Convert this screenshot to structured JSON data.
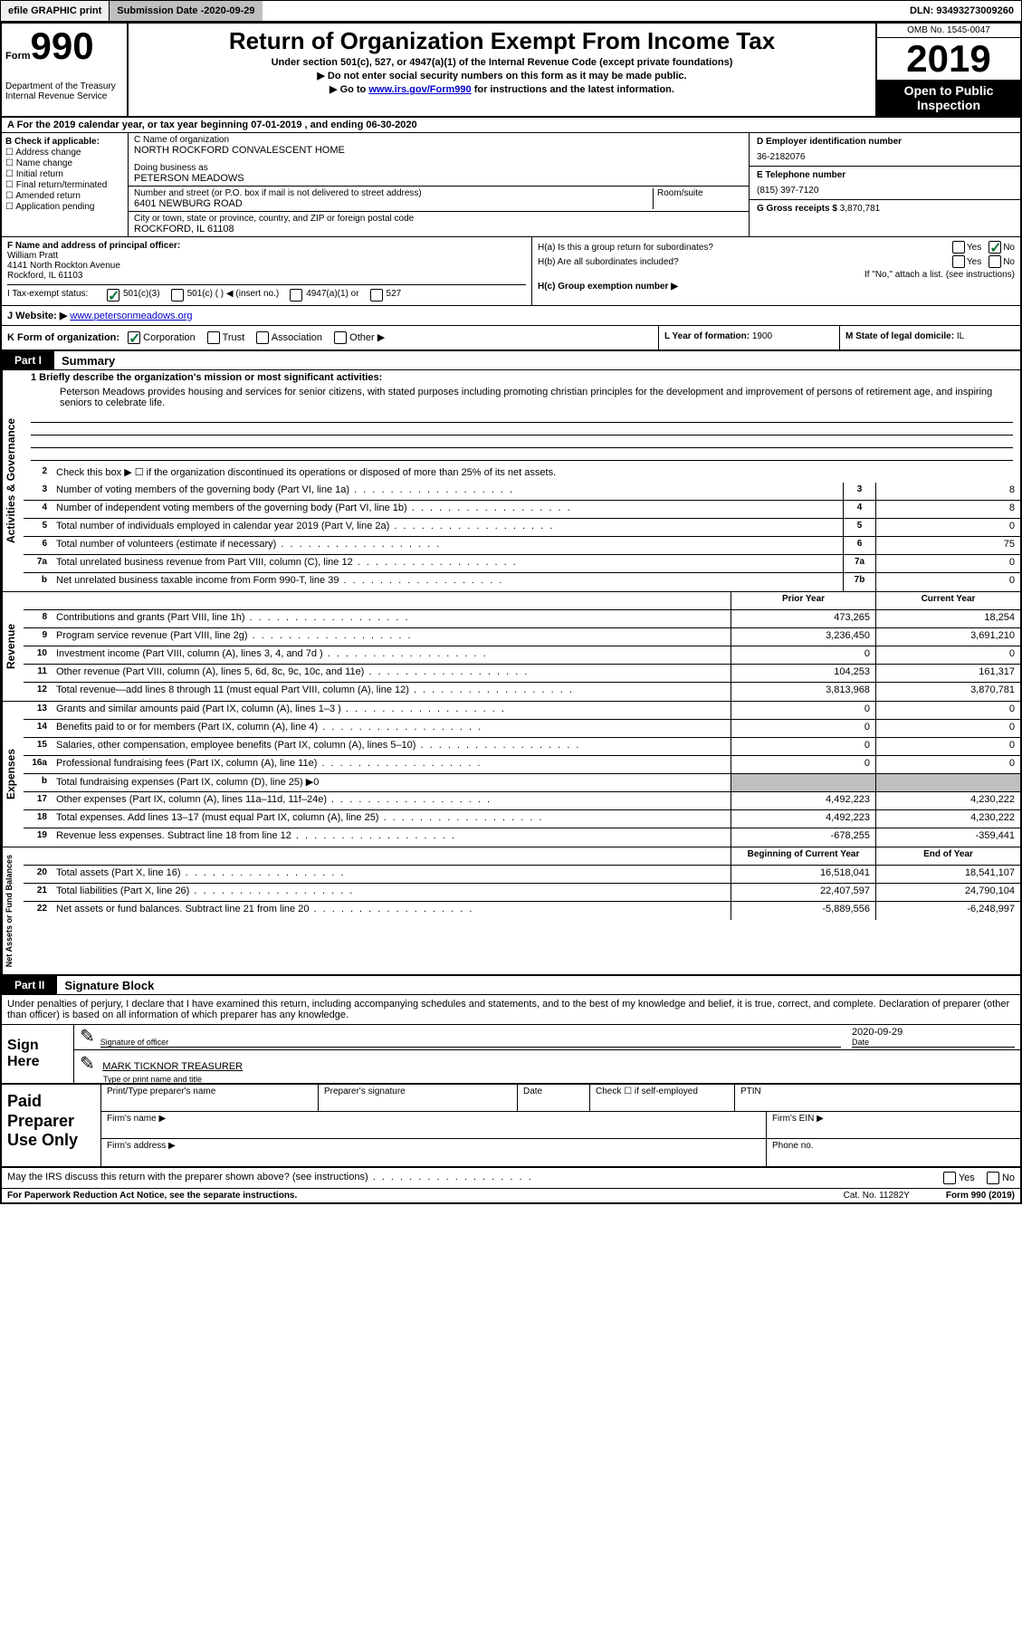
{
  "topbar": {
    "efile": "efile GRAPHIC print",
    "subdate_label": "Submission Date - ",
    "subdate": "2020-09-29",
    "dln": "DLN: 93493273009260"
  },
  "header": {
    "form_prefix": "Form",
    "form_num": "990",
    "dept": "Department of the Treasury\nInternal Revenue Service",
    "title": "Return of Organization Exempt From Income Tax",
    "sub1": "Under section 501(c), 527, or 4947(a)(1) of the Internal Revenue Code (except private foundations)",
    "sub2": "▶ Do not enter social security numbers on this form as it may be made public.",
    "sub3_pre": "▶ Go to ",
    "sub3_link": "www.irs.gov/Form990",
    "sub3_post": " for instructions and the latest information.",
    "omb": "OMB No. 1545-0047",
    "year": "2019",
    "open": "Open to Public Inspection"
  },
  "rowA": "A For the 2019 calendar year, or tax year beginning 07-01-2019     , and ending 06-30-2020",
  "secB": {
    "b_label": "B Check if applicable:",
    "checks": [
      "Address change",
      "Name change",
      "Initial return",
      "Final return/terminated",
      "Amended return",
      "Application pending"
    ],
    "c_label": "C Name of organization",
    "c_name": "NORTH ROCKFORD CONVALESCENT HOME",
    "dba_label": "Doing business as",
    "dba": "PETERSON MEADOWS",
    "addr_label": "Number and street (or P.O. box if mail is not delivered to street address)",
    "addr_room": "Room/suite",
    "addr": "6401 NEWBURG ROAD",
    "city_label": "City or town, state or province, country, and ZIP or foreign postal code",
    "city": "ROCKFORD, IL  61108",
    "d_label": "D Employer identification number",
    "d_val": "36-2182076",
    "e_label": "E Telephone number",
    "e_val": "(815) 397-7120",
    "g_label": "G Gross receipts $ ",
    "g_val": "3,870,781"
  },
  "secF": {
    "f_label": "F  Name and address of principal officer:",
    "f_name": "William Pratt",
    "f_addr1": "4141 North Rockton Avenue",
    "f_addr2": "Rockford, IL  61103",
    "h_a": "H(a)  Is this a group return for subordinates?",
    "h_b": "H(b)  Are all subordinates included?",
    "h_note": "If \"No,\" attach a list. (see instructions)",
    "h_c": "H(c)  Group exemption number ▶",
    "yes": "Yes",
    "no": "No"
  },
  "rowI": {
    "label": "I   Tax-exempt status:",
    "opts": [
      "501(c)(3)",
      "501(c) (  ) ◀ (insert no.)",
      "4947(a)(1) or",
      "527"
    ]
  },
  "rowJ": {
    "label": "J   Website: ▶ ",
    "url": "www.petersonmeadows.org"
  },
  "rowK": {
    "k": "K Form of organization:",
    "opts": [
      "Corporation",
      "Trust",
      "Association",
      "Other ▶"
    ],
    "l": "L Year of formation: ",
    "l_val": "1900",
    "m": "M State of legal domicile: ",
    "m_val": "IL"
  },
  "part1": {
    "tab": "Part I",
    "title": "Summary",
    "vlabel_ag": "Activities & Governance",
    "vlabel_rev": "Revenue",
    "vlabel_exp": "Expenses",
    "vlabel_na": "Net Assets or Fund Balances",
    "line1_label": "1  Briefly describe the organization's mission or most significant activities:",
    "line1_text": "Peterson Meadows provides housing and services for senior citizens, with stated purposes including promoting christian principles for the development and improvement of persons of retirement age, and inspiring seniors to celebrate life.",
    "line2": "Check this box ▶ ☐  if the organization discontinued its operations or disposed of more than 25% of its net assets.",
    "rows_ag": [
      {
        "n": "3",
        "d": "Number of voting members of the governing body (Part VI, line 1a)",
        "box": "3",
        "v": "8"
      },
      {
        "n": "4",
        "d": "Number of independent voting members of the governing body (Part VI, line 1b)",
        "box": "4",
        "v": "8"
      },
      {
        "n": "5",
        "d": "Total number of individuals employed in calendar year 2019 (Part V, line 2a)",
        "box": "5",
        "v": "0"
      },
      {
        "n": "6",
        "d": "Total number of volunteers (estimate if necessary)",
        "box": "6",
        "v": "75"
      },
      {
        "n": "7a",
        "d": "Total unrelated business revenue from Part VIII, column (C), line 12",
        "box": "7a",
        "v": "0"
      },
      {
        "n": "b",
        "d": "Net unrelated business taxable income from Form 990-T, line 39",
        "box": "7b",
        "v": "0"
      }
    ],
    "col_prior": "Prior Year",
    "col_curr": "Current Year",
    "rows_rev": [
      {
        "n": "8",
        "d": "Contributions and grants (Part VIII, line 1h)",
        "p": "473,265",
        "c": "18,254"
      },
      {
        "n": "9",
        "d": "Program service revenue (Part VIII, line 2g)",
        "p": "3,236,450",
        "c": "3,691,210"
      },
      {
        "n": "10",
        "d": "Investment income (Part VIII, column (A), lines 3, 4, and 7d )",
        "p": "0",
        "c": "0"
      },
      {
        "n": "11",
        "d": "Other revenue (Part VIII, column (A), lines 5, 6d, 8c, 9c, 10c, and 11e)",
        "p": "104,253",
        "c": "161,317"
      },
      {
        "n": "12",
        "d": "Total revenue—add lines 8 through 11 (must equal Part VIII, column (A), line 12)",
        "p": "3,813,968",
        "c": "3,870,781"
      }
    ],
    "rows_exp": [
      {
        "n": "13",
        "d": "Grants and similar amounts paid (Part IX, column (A), lines 1–3 )",
        "p": "0",
        "c": "0"
      },
      {
        "n": "14",
        "d": "Benefits paid to or for members (Part IX, column (A), line 4)",
        "p": "0",
        "c": "0"
      },
      {
        "n": "15",
        "d": "Salaries, other compensation, employee benefits (Part IX, column (A), lines 5–10)",
        "p": "0",
        "c": "0"
      },
      {
        "n": "16a",
        "d": "Professional fundraising fees (Part IX, column (A), line 11e)",
        "p": "0",
        "c": "0"
      },
      {
        "n": "b",
        "d": "Total fundraising expenses (Part IX, column (D), line 25) ▶0",
        "p": "",
        "c": "",
        "shaded": true
      },
      {
        "n": "17",
        "d": "Other expenses (Part IX, column (A), lines 11a–11d, 11f–24e)",
        "p": "4,492,223",
        "c": "4,230,222"
      },
      {
        "n": "18",
        "d": "Total expenses. Add lines 13–17 (must equal Part IX, column (A), line 25)",
        "p": "4,492,223",
        "c": "4,230,222"
      },
      {
        "n": "19",
        "d": "Revenue less expenses. Subtract line 18 from line 12",
        "p": "-678,255",
        "c": "-359,441"
      }
    ],
    "col_begin": "Beginning of Current Year",
    "col_end": "End of Year",
    "rows_na": [
      {
        "n": "20",
        "d": "Total assets (Part X, line 16)",
        "p": "16,518,041",
        "c": "18,541,107"
      },
      {
        "n": "21",
        "d": "Total liabilities (Part X, line 26)",
        "p": "22,407,597",
        "c": "24,790,104"
      },
      {
        "n": "22",
        "d": "Net assets or fund balances. Subtract line 21 from line 20",
        "p": "-5,889,556",
        "c": "-6,248,997"
      }
    ]
  },
  "part2": {
    "tab": "Part II",
    "title": "Signature Block",
    "intro": "Under penalties of perjury, I declare that I have examined this return, including accompanying schedules and statements, and to the best of my knowledge and belief, it is true, correct, and complete. Declaration of preparer (other than officer) is based on all information of which preparer has any knowledge.",
    "sign_here": "Sign Here",
    "sig_officer": "Signature of officer",
    "sig_date": "Date",
    "sig_date_val": "2020-09-29",
    "sig_name": "MARK TICKNOR  TREASURER",
    "sig_name_label": "Type or print name and title",
    "paid_label": "Paid Preparer Use Only",
    "p_name": "Print/Type preparer's name",
    "p_sig": "Preparer's signature",
    "p_date": "Date",
    "p_check": "Check ☐ if self-employed",
    "p_ptin": "PTIN",
    "p_firm": "Firm's name   ▶",
    "p_ein": "Firm's EIN ▶",
    "p_addr": "Firm's address ▶",
    "p_phone": "Phone no.",
    "discuss": "May the IRS discuss this return with the preparer shown above? (see instructions)",
    "footer_l": "For Paperwork Reduction Act Notice, see the separate instructions.",
    "footer_m": "Cat. No. 11282Y",
    "footer_r": "Form 990 (2019)"
  }
}
